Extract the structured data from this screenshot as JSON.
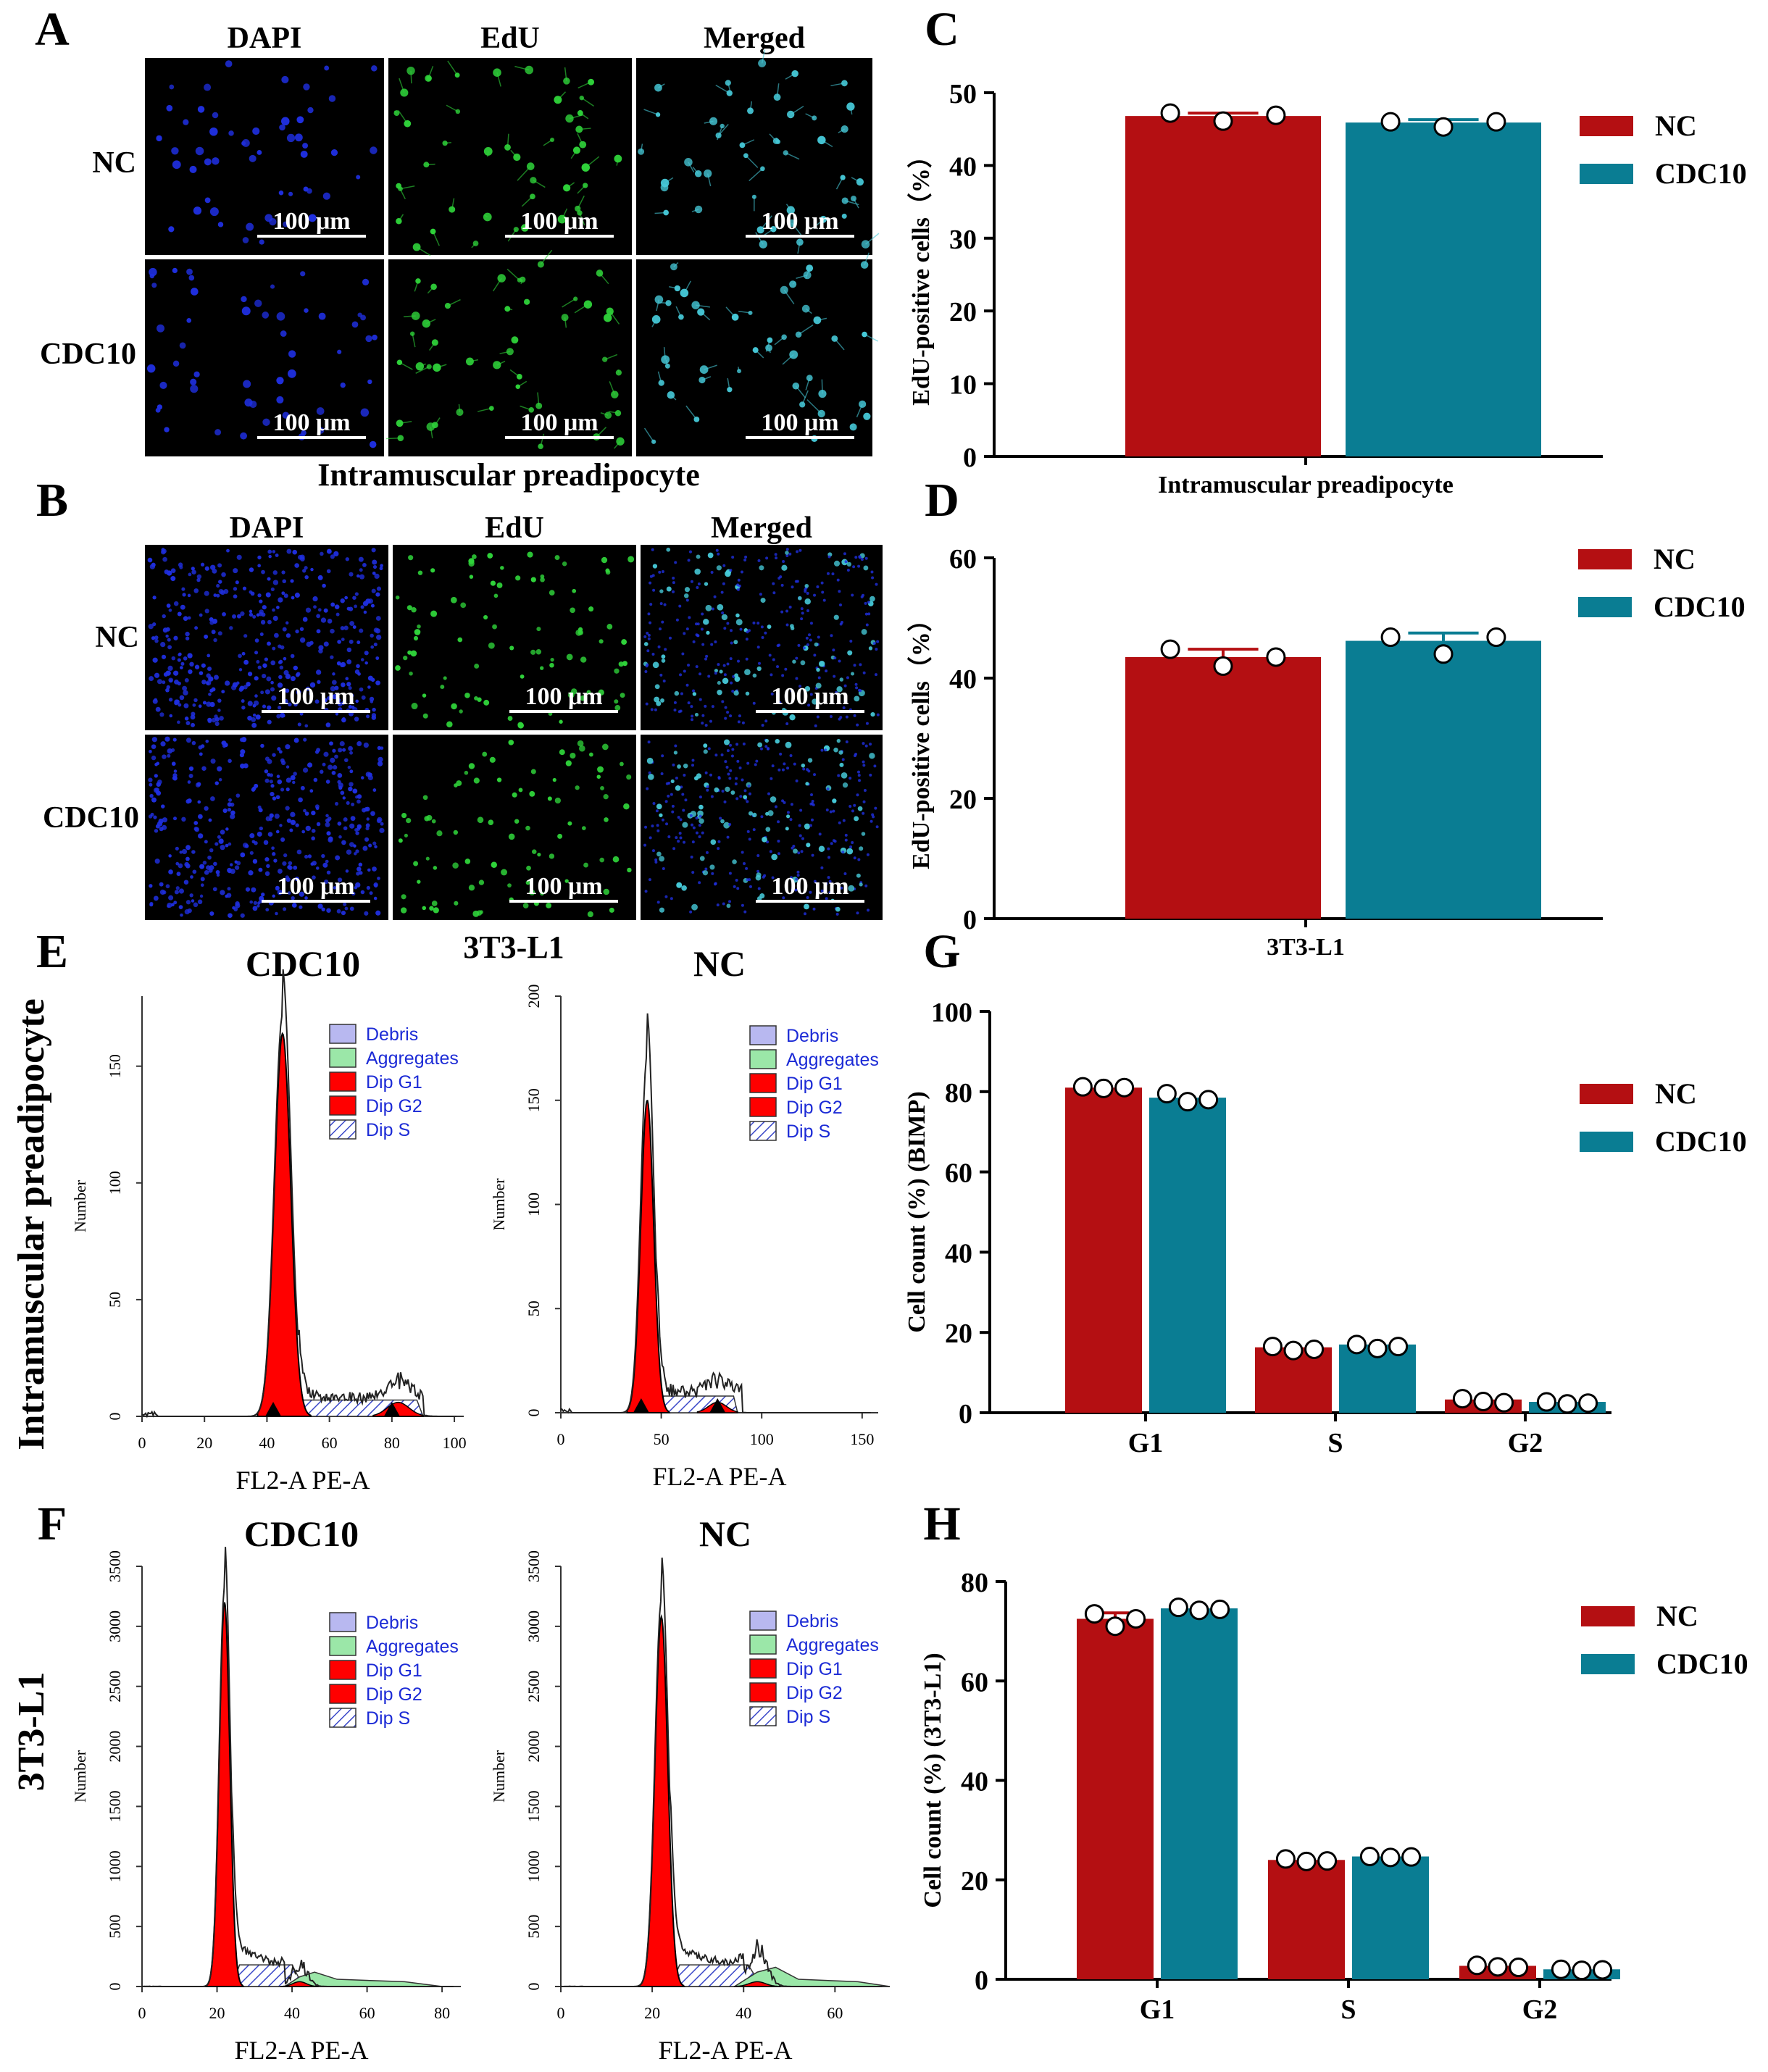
{
  "colors": {
    "nc": "#b40f12",
    "cdc10": "#0a7d93",
    "dapi": "#1f2fe0",
    "edu": "#2fd33a",
    "merged": "#46c9d8",
    "g1": "#ff0000",
    "aggregates": "#9be7a8",
    "debris": "#b8b8f0"
  },
  "panel_letters": [
    "A",
    "B",
    "C",
    "D",
    "E",
    "F",
    "G",
    "H"
  ],
  "micro": {
    "A": {
      "headers": [
        "DAPI",
        "EdU",
        "Merged"
      ],
      "rows": [
        "NC",
        "CDC10"
      ],
      "scale_bar": "100 μm",
      "caption": "Intramuscular preadipocyte"
    },
    "B": {
      "headers": [
        "DAPI",
        "EdU",
        "Merged"
      ],
      "rows": [
        "NC",
        "CDC10"
      ],
      "scale_bar": "100 μm",
      "caption": "3T3-L1"
    }
  },
  "flow": {
    "E": {
      "row_label": "Intramuscular preadipocyte",
      "plots": [
        {
          "title": "CDC10",
          "xlabel": "FL2-A PE-A",
          "ylabel": "Number",
          "xticks": [
            "0",
            "20",
            "40",
            "60",
            "80",
            "100"
          ],
          "yticks": [
            "0",
            "50",
            "100",
            "150"
          ]
        },
        {
          "title": "NC",
          "xlabel": "FL2-A PE-A",
          "ylabel": "Number",
          "xticks": [
            "0",
            "50",
            "100",
            "150"
          ],
          "yticks": [
            "0",
            "50",
            "100",
            "150",
            "200"
          ]
        }
      ]
    },
    "F": {
      "row_label": "3T3-L1",
      "plots": [
        {
          "title": "CDC10",
          "xlabel": "FL2-A PE-A",
          "ylabel": "Number",
          "xticks": [
            "0",
            "20",
            "40",
            "60",
            "80"
          ],
          "yticks": [
            "0",
            "500",
            "1000",
            "1500",
            "2000",
            "2500",
            "3000",
            "3500"
          ]
        },
        {
          "title": "NC",
          "xlabel": "FL2-A PE-A",
          "ylabel": "Number",
          "xticks": [
            "0",
            "20",
            "40",
            "60"
          ],
          "yticks": [
            "0",
            "500",
            "1000",
            "1500",
            "2000",
            "2500",
            "3000",
            "3500"
          ]
        }
      ]
    },
    "legend": [
      "Debris",
      "Aggregates",
      "Dip G1",
      "Dip G2",
      "Dip S"
    ]
  },
  "chart_data": [
    {
      "panel": "C",
      "type": "bar",
      "categories": [
        "Intramuscular preadipocyte"
      ],
      "series": [
        {
          "name": "NC",
          "values": [
            46.8
          ],
          "error": [
            0.4
          ],
          "points": [
            [
              47.2,
              46.1,
              46.9
            ]
          ]
        },
        {
          "name": "CDC10",
          "values": [
            45.9
          ],
          "error": [
            0.4
          ],
          "points": [
            [
              46.0,
              45.3,
              46.0
            ]
          ]
        }
      ],
      "xlabel": "Intramuscular preadipocyte",
      "ylabel": "EdU-positive cells（%）",
      "ylim": [
        0,
        50
      ],
      "yticks": [
        0,
        10,
        20,
        30,
        40,
        50
      ],
      "legend": "right"
    },
    {
      "panel": "D",
      "type": "bar",
      "categories": [
        "3T3-L1"
      ],
      "series": [
        {
          "name": "NC",
          "values": [
            43.5
          ],
          "error": [
            1.3
          ],
          "points": [
            [
              44.8,
              42.0,
              43.5
            ]
          ]
        },
        {
          "name": "CDC10",
          "values": [
            46.2
          ],
          "error": [
            1.3
          ],
          "points": [
            [
              46.8,
              44.0,
              46.8
            ]
          ]
        }
      ],
      "xlabel": "3T3-L1",
      "ylabel": "EdU-positive cells（%）",
      "ylim": [
        0,
        60
      ],
      "yticks": [
        0,
        20,
        40,
        60
      ],
      "legend": "right"
    },
    {
      "panel": "G",
      "type": "bar",
      "categories": [
        "G1",
        "S",
        "G2"
      ],
      "series": [
        {
          "name": "NC",
          "values": [
            81,
            16.3,
            3.3
          ],
          "points": [
            [
              81.2,
              80.8,
              81.0
            ],
            [
              16.5,
              15.5,
              15.8
            ],
            [
              3.5,
              2.8,
              2.5
            ]
          ]
        },
        {
          "name": "CDC10",
          "values": [
            78.5,
            17,
            2.7
          ],
          "points": [
            [
              79.5,
              77.5,
              78.0
            ],
            [
              17.0,
              16.0,
              16.5
            ],
            [
              2.7,
              2.2,
              2.4
            ]
          ]
        }
      ],
      "xlabel": "",
      "ylabel": "Cell count (%) (BIMP)",
      "ylim": [
        0,
        100
      ],
      "yticks": [
        0,
        20,
        40,
        60,
        80,
        100
      ],
      "legend": "right"
    },
    {
      "panel": "H",
      "type": "bar",
      "categories": [
        "G1",
        "S",
        "G2"
      ],
      "series": [
        {
          "name": "NC",
          "values": [
            72.5,
            24,
            2.7
          ],
          "error": [
            1.2,
            0,
            0
          ],
          "points": [
            [
              73.5,
              71.0,
              72.5
            ],
            [
              24.2,
              23.7,
              23.8
            ],
            [
              2.8,
              2.5,
              2.4
            ]
          ]
        },
        {
          "name": "CDC10",
          "values": [
            74.6,
            24.7,
            2.0
          ],
          "points": [
            [
              74.8,
              74.2,
              74.4
            ],
            [
              24.7,
              24.5,
              24.6
            ],
            [
              2.0,
              1.8,
              1.9
            ]
          ]
        }
      ],
      "xlabel": "",
      "ylabel": "Cell count (%) (3T3-L1)",
      "ylim": [
        0,
        80
      ],
      "yticks": [
        0,
        20,
        40,
        60,
        80
      ],
      "legend": "right"
    }
  ]
}
